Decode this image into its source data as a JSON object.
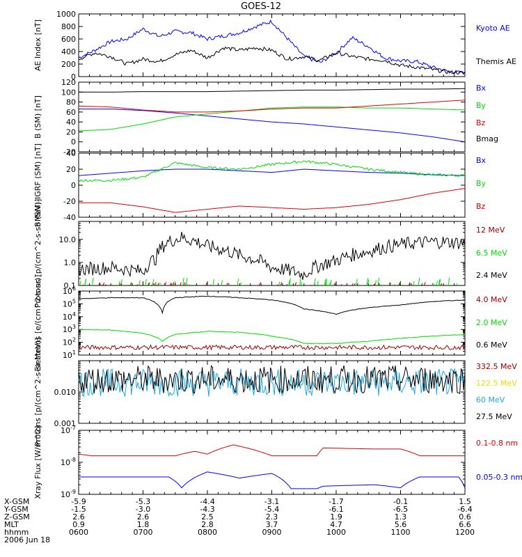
{
  "title": "GOES-12",
  "colors": {
    "black": "#000000",
    "blue": "#0000ff",
    "green": "#00dd00",
    "red": "#dd0000",
    "darkred": "#a00000",
    "yellow": "#eedd00",
    "cyan": "#1ea8e0"
  },
  "x_axis": {
    "hhmm": [
      "0600",
      "0700",
      "0800",
      "0900",
      "1000",
      "1100",
      "1200"
    ],
    "x_gsm": [
      "-5.9",
      "-5.3",
      "-4.4",
      "-3.1",
      "-1.7",
      "-0.1",
      "1.5"
    ],
    "y_gsm": [
      "-1.5",
      "-3.0",
      "-4.3",
      "-5.4",
      "-6.1",
      "-6.5",
      "-6.4"
    ],
    "z_gsm": [
      "2.6",
      "2.6",
      "2.5",
      "2.3",
      "1.9",
      "1.3",
      "0.6"
    ],
    "mlt": [
      "0.9",
      "1.8",
      "2.8",
      "3.7",
      "4.7",
      "5.6",
      "6.6"
    ],
    "row_labels": [
      "X-GSM",
      "Y-GSM",
      "Z-GSM",
      "MLT",
      "hhmm"
    ],
    "date": "2006 Jun 18"
  },
  "chart_data": [
    {
      "type": "line",
      "id": "ae",
      "ylabel": "AE Index [nT]",
      "ylim": [
        0,
        1000
      ],
      "yticks": [
        "0",
        "200",
        "400",
        "600",
        "800",
        "1000"
      ],
      "x": [
        0,
        0.25,
        0.5,
        0.75,
        1.0,
        1.25,
        1.5,
        1.75,
        2.0,
        2.25,
        2.5,
        2.75,
        3.0,
        3.25,
        3.5,
        3.75,
        4.0,
        4.25,
        4.5,
        4.75,
        5.0,
        5.25,
        5.5,
        5.75,
        6.0
      ],
      "series": [
        {
          "name": "Kyoto AE",
          "color": "blue",
          "values": [
            300,
            420,
            560,
            600,
            760,
            640,
            720,
            700,
            600,
            650,
            700,
            800,
            880,
            600,
            320,
            220,
            380,
            620,
            480,
            300,
            250,
            240,
            150,
            80,
            60
          ]
        },
        {
          "name": "Themis AE",
          "color": "black",
          "values": [
            280,
            380,
            320,
            200,
            280,
            240,
            350,
            420,
            300,
            460,
            420,
            460,
            420,
            280,
            320,
            260,
            380,
            320,
            280,
            260,
            180,
            150,
            110,
            70,
            60
          ]
        }
      ]
    },
    {
      "type": "line",
      "id": "b_sm",
      "ylabel": "B (SM) [nT]",
      "ylim": [
        -20,
        120
      ],
      "yticks": [
        "-20",
        "0",
        "20",
        "40",
        "60",
        "80",
        "100",
        "120"
      ],
      "x": [
        0,
        0.5,
        1.0,
        1.5,
        2.0,
        2.5,
        3.0,
        3.5,
        4.0,
        4.5,
        5.0,
        5.5,
        6.0
      ],
      "series": [
        {
          "name": "Bx",
          "color": "blue",
          "values": [
            66,
            66,
            63,
            58,
            52,
            46,
            40,
            36,
            30,
            24,
            18,
            10,
            0
          ]
        },
        {
          "name": "By",
          "color": "green",
          "values": [
            22,
            25,
            36,
            50,
            56,
            62,
            68,
            70,
            70,
            68,
            68,
            66,
            64
          ]
        },
        {
          "name": "Bz",
          "color": "red",
          "values": [
            72,
            70,
            64,
            60,
            60,
            62,
            66,
            68,
            68,
            72,
            76,
            80,
            84
          ]
        },
        {
          "name": "Bmag",
          "color": "black",
          "values": [
            100,
            100,
            101,
            101,
            101,
            102,
            103,
            104,
            104,
            105,
            106,
            106,
            107
          ]
        }
      ]
    },
    {
      "type": "line",
      "id": "b_igrf",
      "ylabel": "B (SM)-IGRF (SM) [nT]",
      "ylim": [
        -40,
        40
      ],
      "yticks": [
        "-40",
        "-20",
        "0",
        "20",
        "40"
      ],
      "x": [
        0,
        0.5,
        1.0,
        1.5,
        2.0,
        2.5,
        3.0,
        3.5,
        4.0,
        4.5,
        5.0,
        5.5,
        6.0
      ],
      "series": [
        {
          "name": "Bx",
          "color": "blue",
          "values": [
            12,
            15,
            18,
            20,
            20,
            18,
            16,
            20,
            18,
            16,
            15,
            13,
            12
          ]
        },
        {
          "name": "By",
          "color": "green",
          "values": [
            6,
            6,
            10,
            28,
            22,
            20,
            26,
            30,
            26,
            20,
            16,
            13,
            12
          ]
        },
        {
          "name": "Bz",
          "color": "red",
          "values": [
            -22,
            -22,
            -27,
            -34,
            -30,
            -26,
            -28,
            -30,
            -28,
            -24,
            -18,
            -10,
            -4
          ]
        }
      ]
    },
    {
      "type": "line",
      "id": "protons_low",
      "ylabel": "Protons [p/(cm^2-s-sr-MeV)]",
      "yscale": "log",
      "ylim": [
        0.1,
        60
      ],
      "yticks": [
        "0.1",
        "1.0",
        "10.0"
      ],
      "series": [
        {
          "name": "12 MeV",
          "color": "darkred"
        },
        {
          "name": "6.5 MeV",
          "color": "green"
        },
        {
          "name": "2.4 MeV",
          "color": "black",
          "x": [
            0,
            0.5,
            1.0,
            1.2,
            1.4,
            1.6,
            2.0,
            2.5,
            3.0,
            3.5,
            4.0,
            4.5,
            5.0,
            5.5,
            6.0
          ],
          "values": [
            0.5,
            0.6,
            0.4,
            1.5,
            8,
            12,
            5,
            2,
            0.6,
            0.3,
            1.2,
            3,
            6,
            8,
            7
          ]
        }
      ]
    },
    {
      "type": "line",
      "id": "electrons",
      "ylabel": "Electrons [e/(cm^2-s-sr)]",
      "yscale": "log",
      "ylim": [
        10,
        1000000
      ],
      "yticks": [
        "10^1",
        "10^2",
        "10^3",
        "10^4",
        "10^5",
        "10^6"
      ],
      "x": [
        0,
        0.5,
        1.0,
        1.3,
        1.5,
        2.0,
        2.5,
        3.0,
        3.5,
        4.0,
        4.5,
        5.0,
        5.5,
        6.0
      ],
      "series": [
        {
          "name": "4.0 MeV",
          "color": "darkred",
          "values": [
            40,
            40,
            40,
            40,
            40,
            40,
            40,
            40,
            40,
            40,
            40,
            40,
            40,
            40
          ]
        },
        {
          "name": "2.0 MeV",
          "color": "green",
          "values": [
            1000,
            900,
            500,
            120,
            400,
            700,
            600,
            300,
            80,
            80,
            120,
            200,
            300,
            400
          ]
        },
        {
          "name": "0.6 MeV",
          "color": "black",
          "values": [
            250000,
            300000,
            300000,
            20000,
            300000,
            400000,
            300000,
            200000,
            40000,
            15000,
            50000,
            80000,
            150000,
            200000
          ]
        }
      ]
    },
    {
      "type": "line",
      "id": "protons_high",
      "ylabel": "Protons [p/(cm^2-s-sr-MeV)]",
      "yscale": "log",
      "ylim": [
        0.001,
        0.1
      ],
      "yticks": [
        "0.001",
        "0.010"
      ],
      "series": [
        {
          "name": "332.5 MeV",
          "color": "darkred"
        },
        {
          "name": "122.5 MeV",
          "color": "yellow"
        },
        {
          "name": "60 MeV",
          "color": "cyan",
          "level": 0.02
        },
        {
          "name": "27.5 MeV",
          "color": "black",
          "level": 0.025
        }
      ]
    },
    {
      "type": "line",
      "id": "xray",
      "ylabel": "Xray Flux [W/m^2]",
      "yscale": "log",
      "ylim": [
        1e-09,
        1e-07
      ],
      "yticks": [
        "10^-9",
        "10^-8",
        "10^-7"
      ],
      "series": [
        {
          "name": "0.1-0.8 nm",
          "color": "red",
          "x": [
            0,
            0.2,
            1.5,
            1.8,
            2.0,
            2.4,
            2.8,
            3.0,
            3.7,
            3.8,
            4.6,
            5.0,
            5.3,
            6.0
          ],
          "values": [
            1.8e-08,
            1.6e-08,
            1.6e-08,
            2.2e-08,
            1.8e-08,
            3.5e-08,
            2.2e-08,
            1.6e-08,
            1.6e-08,
            2.8e-08,
            2.6e-08,
            2.6e-08,
            1.6e-08,
            1.6e-08
          ]
        },
        {
          "name": "0.05-0.3 nm",
          "color": "blue",
          "x": [
            0,
            1.4,
            1.6,
            2.0,
            2.5,
            3.0,
            3.3,
            3.7,
            3.8,
            4.6,
            5.0,
            5.3,
            5.9,
            6.0
          ],
          "values": [
            3.5e-09,
            3.5e-09,
            1.6e-09,
            5e-09,
            3.2e-09,
            4.5e-09,
            1.5e-09,
            1.5e-09,
            1.8e-09,
            2e-09,
            1.6e-09,
            3.5e-09,
            3.5e-09,
            1.6e-09
          ]
        }
      ]
    }
  ]
}
